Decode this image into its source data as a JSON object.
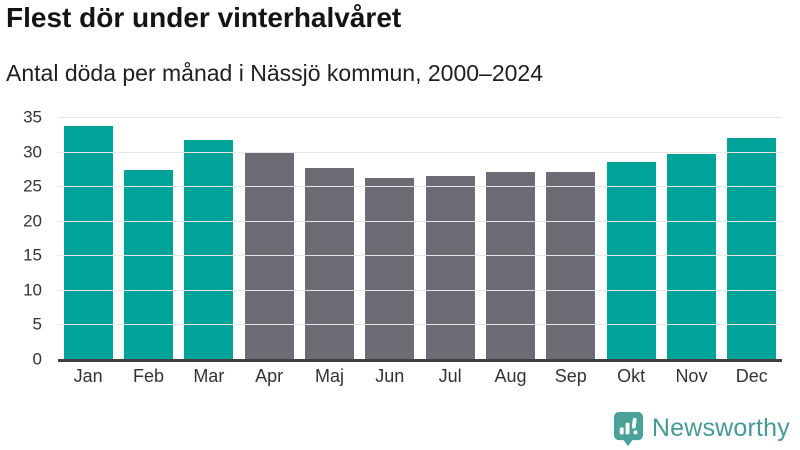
{
  "header": {
    "title": "Flest dör under vinterhalvåret",
    "subtitle": "Antal döda per månad i Nässjö kommun, 2000–2024"
  },
  "chart_data": {
    "type": "bar",
    "title": "Flest dör under vinterhalvåret",
    "subtitle": "Antal döda per månad i Nässjö kommun, 2000–2024",
    "categories": [
      "Jan",
      "Feb",
      "Mar",
      "Apr",
      "Maj",
      "Jun",
      "Jul",
      "Aug",
      "Sep",
      "Okt",
      "Nov",
      "Dec"
    ],
    "values": [
      33.7,
      27.3,
      31.7,
      30.0,
      27.6,
      26.2,
      26.4,
      27.0,
      27.0,
      28.5,
      29.6,
      32.0
    ],
    "bar_color_keys": [
      "highlight",
      "highlight",
      "highlight",
      "base",
      "base",
      "base",
      "base",
      "base",
      "base",
      "highlight",
      "highlight",
      "highlight"
    ],
    "colors": {
      "highlight": "#00a39a",
      "base": "#6d6c74"
    },
    "xlabel": "",
    "ylabel": "",
    "ylim": [
      0,
      35
    ],
    "yticks": [
      0,
      5,
      10,
      15,
      20,
      25,
      30,
      35
    ],
    "grid": true,
    "legend": "none"
  },
  "footer": {
    "brand": "Newsworthy",
    "brand_color": "#479a94",
    "logo_icon": "bar-chart-speech-bubble-icon"
  }
}
